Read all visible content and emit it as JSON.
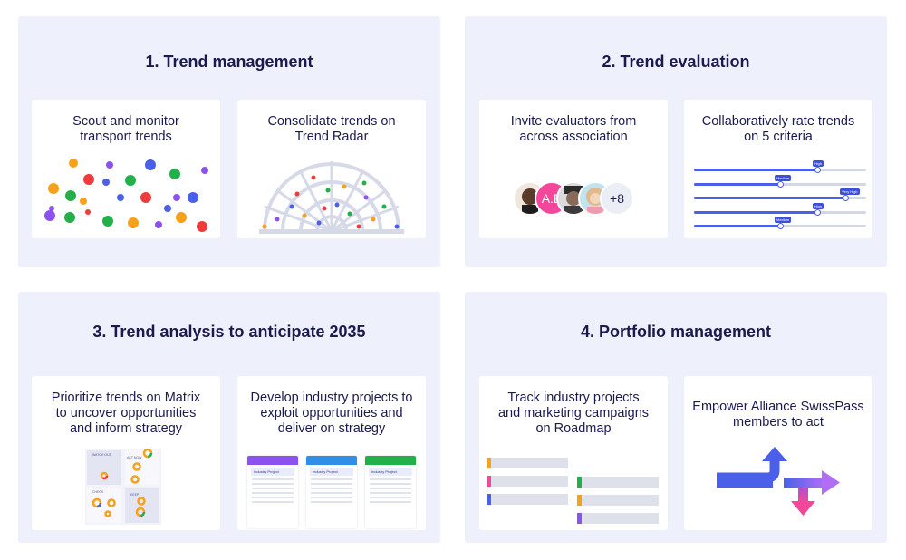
{
  "colors": {
    "panel_bg": "#eef0fb",
    "title_text": "#1b1a4f",
    "accent_blue": "#4a60e8",
    "accent_purple": "#8c52f0",
    "accent_pink": "#f2479b",
    "accent_green": "#22b04b",
    "accent_orange": "#f7a11a"
  },
  "sections": [
    {
      "title": "1. Trend management",
      "cards": [
        {
          "text": "Scout and monitor\ntransport trends",
          "illustration": "colored-dots"
        },
        {
          "text": "Consolidate trends on\nTrend Radar",
          "illustration": "trend-radar"
        }
      ]
    },
    {
      "title": "2. Trend evaluation",
      "cards": [
        {
          "text": "Invite evaluators from\nacross association",
          "illustration": "avatar-group",
          "avatar_initials": "A.B",
          "more_count": "+8"
        },
        {
          "text": "Collaboratively rate trends\non 5 criteria",
          "illustration": "rating-sliders",
          "sliders": [
            {
              "tag": "High",
              "level": 0.72
            },
            {
              "tag": "Medium",
              "level": 0.5
            },
            {
              "tag": "Very High",
              "level": 0.88
            },
            {
              "tag": "High",
              "level": 0.72
            },
            {
              "tag": "Medium",
              "level": 0.5
            }
          ]
        }
      ]
    },
    {
      "title": "3. Trend analysis to anticipate 2035",
      "cards": [
        {
          "text": "Prioritize trends on Matrix\nto uncover opportunities\nand inform strategy",
          "illustration": "matrix",
          "quadrant_labels": [
            "WATCH OUT",
            "ACT NOW",
            "CHECK",
            "KEEP"
          ]
        },
        {
          "text": "Develop industry projects to\nexploit opportunities and\ndeliver on strategy",
          "illustration": "project-cards",
          "project_label": "Industry Project"
        }
      ]
    },
    {
      "title": "4. Portfolio management",
      "cards": [
        {
          "text": "Track industry projects\nand marketing campaigns\non Roadmap",
          "illustration": "roadmap"
        },
        {
          "text": "Empower Alliance SwissPass\nmembers to act",
          "illustration": "arrows"
        }
      ]
    }
  ]
}
